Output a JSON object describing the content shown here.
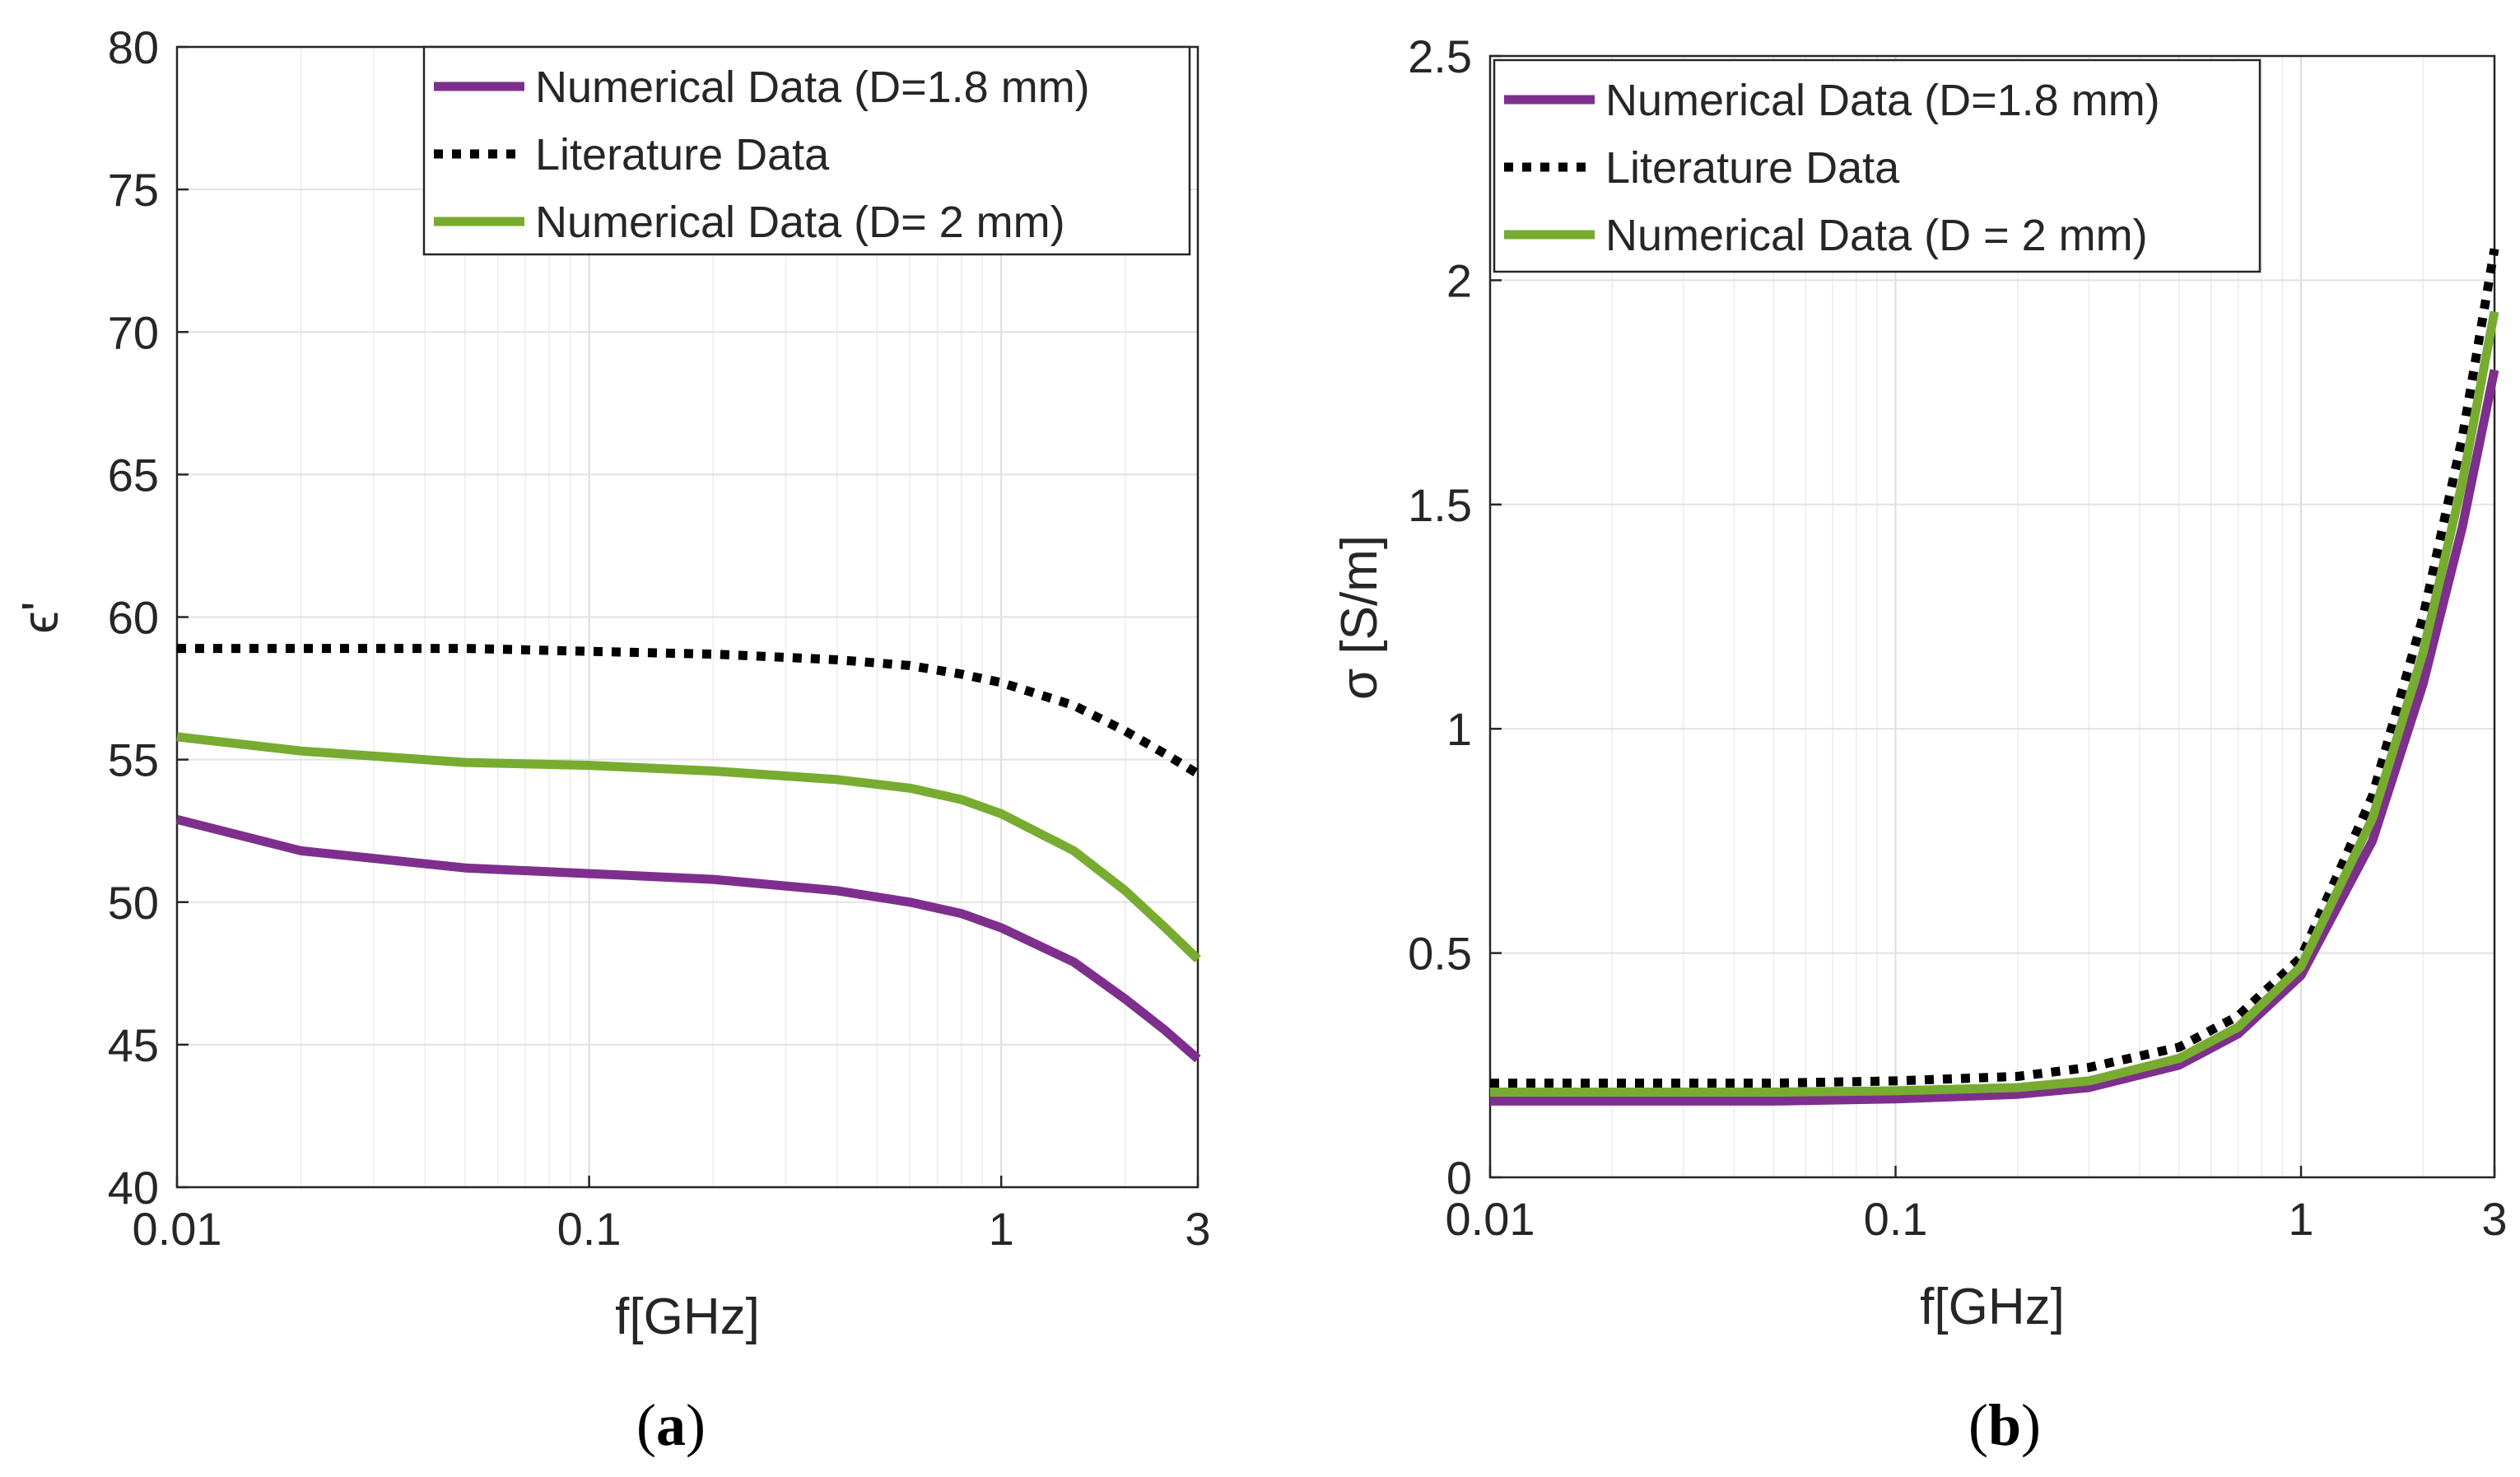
{
  "chart_data": [
    {
      "type": "line",
      "caption": "(a)",
      "caption_letter": "a",
      "xlabel": "f[GHz]",
      "ylabel": "ϵ'",
      "xscale": "log",
      "xlim": [
        0.01,
        3
      ],
      "ylim": [
        40,
        80
      ],
      "xticks": [
        0.01,
        0.1,
        1,
        3
      ],
      "xtick_labels": [
        "0.01",
        "0.1",
        "1",
        "3"
      ],
      "yticks": [
        40,
        45,
        50,
        55,
        60,
        65,
        70,
        75,
        80
      ],
      "ytick_labels": [
        "40",
        "45",
        "50",
        "55",
        "60",
        "65",
        "70",
        "75",
        "80"
      ],
      "grid": true,
      "legend": "top-right",
      "series": [
        {
          "name": "Numerical Data (D=1.8 mm)",
          "color": "#7e2f8e",
          "style": "solid",
          "x": [
            0.01,
            0.02,
            0.05,
            0.1,
            0.2,
            0.4,
            0.6,
            0.8,
            1.0,
            1.5,
            2.0,
            2.5,
            3.0
          ],
          "y": [
            52.9,
            51.8,
            51.2,
            51.0,
            50.8,
            50.4,
            50.0,
            49.6,
            49.1,
            47.9,
            46.6,
            45.5,
            44.5
          ]
        },
        {
          "name": "Literature Data",
          "color": "#000000",
          "style": "dotted",
          "x": [
            0.01,
            0.02,
            0.05,
            0.1,
            0.2,
            0.4,
            0.6,
            0.8,
            1.0,
            1.5,
            2.0,
            2.5,
            3.0
          ],
          "y": [
            58.9,
            58.9,
            58.9,
            58.8,
            58.7,
            58.5,
            58.3,
            58.0,
            57.7,
            56.9,
            56.0,
            55.2,
            54.5
          ]
        },
        {
          "name": "Numerical Data (D= 2 mm)",
          "color": "#77ac30",
          "style": "solid",
          "x": [
            0.01,
            0.02,
            0.05,
            0.1,
            0.2,
            0.4,
            0.6,
            0.8,
            1.0,
            1.5,
            2.0,
            2.5,
            3.0
          ],
          "y": [
            55.8,
            55.3,
            54.9,
            54.8,
            54.6,
            54.3,
            54.0,
            53.6,
            53.1,
            51.8,
            50.4,
            49.1,
            48.0
          ]
        }
      ]
    },
    {
      "type": "line",
      "caption": "(b)",
      "caption_letter": "b",
      "xlabel": "f[GHz]",
      "ylabel": "σ [S/m]",
      "xscale": "log",
      "xlim": [
        0.01,
        3
      ],
      "ylim": [
        0,
        2.5
      ],
      "xticks": [
        0.01,
        0.1,
        1,
        3
      ],
      "xtick_labels": [
        "0.01",
        "0.1",
        "1",
        "3"
      ],
      "yticks": [
        0,
        0.5,
        1,
        1.5,
        2,
        2.5
      ],
      "ytick_labels": [
        "0",
        "0.5",
        "1",
        "1.5",
        "2",
        "2.5"
      ],
      "grid": true,
      "legend": "top-left",
      "series": [
        {
          "name": "Numerical Data (D=1.8   mm)",
          "color": "#7e2f8e",
          "style": "solid",
          "x": [
            0.01,
            0.05,
            0.1,
            0.2,
            0.3,
            0.5,
            0.7,
            1.0,
            1.5,
            2.0,
            2.5,
            3.0
          ],
          "y": [
            0.17,
            0.17,
            0.175,
            0.185,
            0.2,
            0.25,
            0.32,
            0.45,
            0.75,
            1.1,
            1.45,
            1.8
          ]
        },
        {
          "name": "Literature Data",
          "color": "#000000",
          "style": "dotted",
          "x": [
            0.01,
            0.05,
            0.1,
            0.2,
            0.3,
            0.5,
            0.7,
            1.0,
            1.5,
            2.0,
            2.5,
            3.0
          ],
          "y": [
            0.21,
            0.21,
            0.215,
            0.225,
            0.245,
            0.29,
            0.36,
            0.49,
            0.85,
            1.25,
            1.65,
            2.07
          ]
        },
        {
          "name": "Numerical Data (D = 2 mm)",
          "color": "#77ac30",
          "style": "solid",
          "x": [
            0.01,
            0.05,
            0.1,
            0.2,
            0.3,
            0.5,
            0.7,
            1.0,
            1.5,
            2.0,
            2.5,
            3.0
          ],
          "y": [
            0.19,
            0.19,
            0.193,
            0.2,
            0.215,
            0.265,
            0.335,
            0.47,
            0.8,
            1.17,
            1.55,
            1.93
          ]
        }
      ]
    }
  ]
}
